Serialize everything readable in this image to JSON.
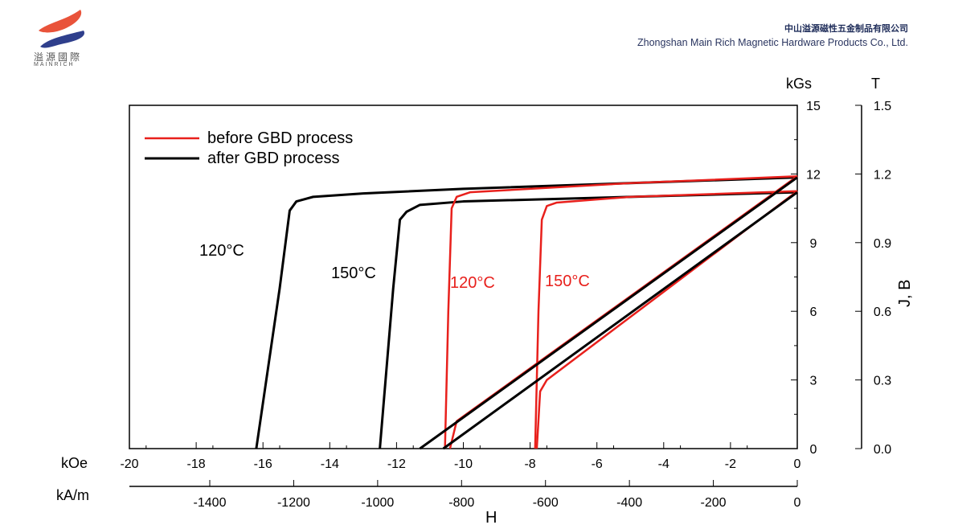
{
  "header": {
    "logo_cn": "溢源國際",
    "logo_en": "MAINRICH",
    "company_cn": "中山溢源磁性五金制品有限公司",
    "company_en": "Zhongshan Main Rich Magnetic Hardware Products Co., Ltd."
  },
  "colors": {
    "before": "#e8201c",
    "after": "#000000"
  },
  "chart_data": {
    "type": "line",
    "title": "",
    "xlabel": "H",
    "x_units": [
      "kOe",
      "kA/m"
    ],
    "ylabel": "J, B",
    "y_units": [
      "kGs",
      "T"
    ],
    "xlim": [
      -20,
      0
    ],
    "ylim": [
      0,
      15
    ],
    "x_ticks_kOe": [
      "-20",
      "-18",
      "-16",
      "-14",
      "-12",
      "-10",
      "-8",
      "-6",
      "-4",
      "-2",
      "0"
    ],
    "x_ticks_kAm": [
      "-1400",
      "-1200",
      "-1000",
      "-800",
      "-600",
      "-400",
      "-200",
      "0"
    ],
    "y_ticks_kGs": [
      "0",
      "3",
      "6",
      "9",
      "12",
      "15"
    ],
    "y_ticks_T": [
      "0.0",
      "0.3",
      "0.6",
      "0.9",
      "1.2",
      "1.5"
    ],
    "legend": {
      "position": "top-left",
      "entries": [
        "before GBD process",
        "after GBD process"
      ]
    },
    "annotations": [
      {
        "text": "120°C",
        "group": "after"
      },
      {
        "text": "150°C",
        "group": "after"
      },
      {
        "text": "120°C",
        "group": "before"
      },
      {
        "text": "150°C",
        "group": "before"
      }
    ],
    "series": [
      {
        "group": "after",
        "kind": "J",
        "temp": "120°C",
        "points": [
          [
            0,
            11.85
          ],
          [
            -5,
            11.6
          ],
          [
            -10,
            11.35
          ],
          [
            -13,
            11.15
          ],
          [
            -14.5,
            11.0
          ],
          [
            -15.0,
            10.8
          ],
          [
            -15.2,
            10.4
          ],
          [
            -15.5,
            7
          ],
          [
            -16,
            2
          ],
          [
            -16.2,
            0
          ]
        ]
      },
      {
        "group": "after",
        "kind": "J",
        "temp": "150°C",
        "points": [
          [
            0,
            11.2
          ],
          [
            -5,
            11.0
          ],
          [
            -10,
            10.8
          ],
          [
            -11.3,
            10.65
          ],
          [
            -11.7,
            10.35
          ],
          [
            -11.9,
            10.0
          ],
          [
            -12.1,
            7
          ],
          [
            -12.5,
            0
          ]
        ]
      },
      {
        "group": "before",
        "kind": "J",
        "temp": "120°C",
        "points": [
          [
            0,
            11.9
          ],
          [
            -5,
            11.6
          ],
          [
            -9.8,
            11.2
          ],
          [
            -10.2,
            11.0
          ],
          [
            -10.35,
            10.5
          ],
          [
            -10.45,
            6
          ],
          [
            -10.55,
            0
          ]
        ]
      },
      {
        "group": "before",
        "kind": "J",
        "temp": "150°C",
        "points": [
          [
            0,
            11.25
          ],
          [
            -5,
            11.0
          ],
          [
            -7.2,
            10.75
          ],
          [
            -7.5,
            10.6
          ],
          [
            -7.65,
            10
          ],
          [
            -7.75,
            6
          ],
          [
            -7.85,
            0
          ]
        ]
      },
      {
        "group": "before",
        "kind": "B",
        "temp": "120°C",
        "points": [
          [
            0,
            11.9
          ],
          [
            -10.2,
            1.2
          ],
          [
            -10.4,
            0
          ]
        ]
      },
      {
        "group": "before",
        "kind": "B",
        "temp": "150°C",
        "points": [
          [
            0,
            11.25
          ],
          [
            -7.5,
            3.0
          ],
          [
            -7.7,
            2.5
          ],
          [
            -7.8,
            0
          ]
        ]
      },
      {
        "group": "after",
        "kind": "B",
        "temp": "120°C",
        "points": [
          [
            0,
            11.85
          ],
          [
            -11.3,
            0
          ]
        ]
      },
      {
        "group": "after",
        "kind": "B",
        "temp": "150°C",
        "points": [
          [
            0,
            11.2
          ],
          [
            -10.6,
            0
          ]
        ]
      }
    ]
  }
}
